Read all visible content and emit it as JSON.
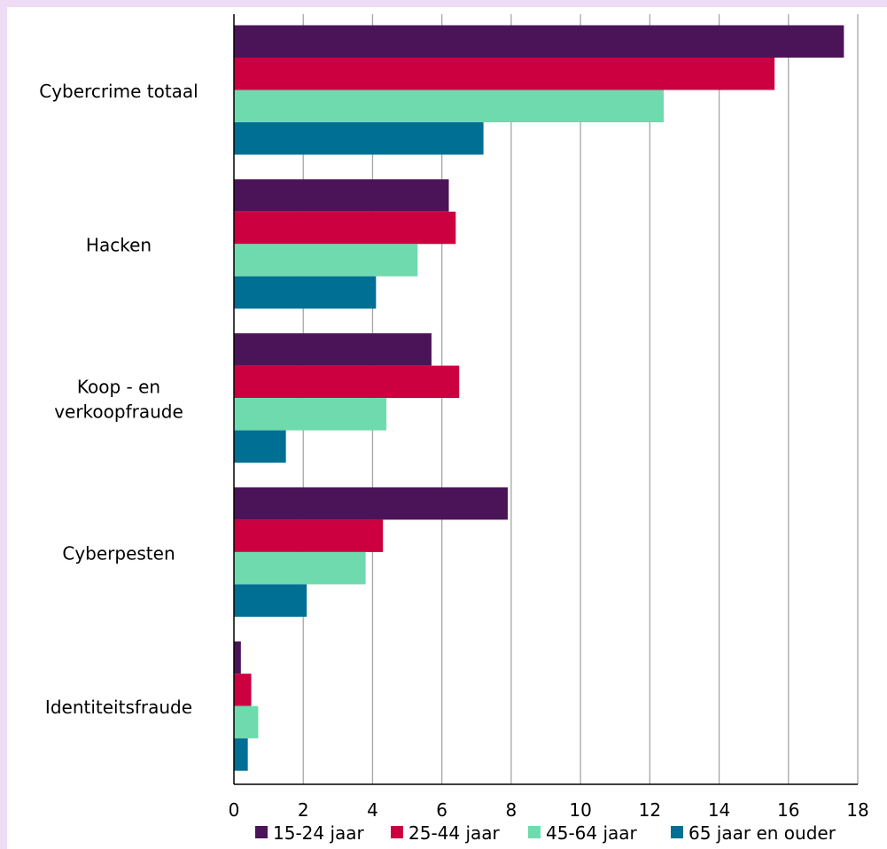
{
  "chart_data": {
    "type": "bar",
    "orientation": "horizontal",
    "categories": [
      "Cybercrime totaal",
      "Hacken",
      "Koop - en verkoopfraude",
      "Cyberpesten",
      "Identiteitsfraude"
    ],
    "category_lines": [
      [
        "Cybercrime totaal"
      ],
      [
        "Hacken"
      ],
      [
        "Koop - en",
        "verkoopfraude"
      ],
      [
        "Cyberpesten"
      ],
      [
        "Identiteitsfraude"
      ]
    ],
    "series": [
      {
        "name": "15-24 jaar",
        "color": "#4b1459",
        "values": [
          17.6,
          6.2,
          5.7,
          7.9,
          0.2
        ]
      },
      {
        "name": "25-44 jaar",
        "color": "#cc0040",
        "values": [
          15.6,
          6.4,
          6.5,
          4.3,
          0.5
        ]
      },
      {
        "name": "45-64 jaar",
        "color": "#6fdaae",
        "values": [
          12.4,
          5.3,
          4.4,
          3.8,
          0.7
        ]
      },
      {
        "name": "65 jaar en ouder",
        "color": "#006f94",
        "values": [
          7.2,
          4.1,
          1.5,
          2.1,
          0.4
        ]
      }
    ],
    "xlim": [
      0,
      18
    ],
    "xticks": [
      "0",
      "2",
      "4",
      "6",
      "8",
      "10",
      "12",
      "14",
      "16",
      "18"
    ],
    "grid": "vertical",
    "legend_position": "bottom",
    "title": "",
    "xlabel": "",
    "ylabel": ""
  }
}
